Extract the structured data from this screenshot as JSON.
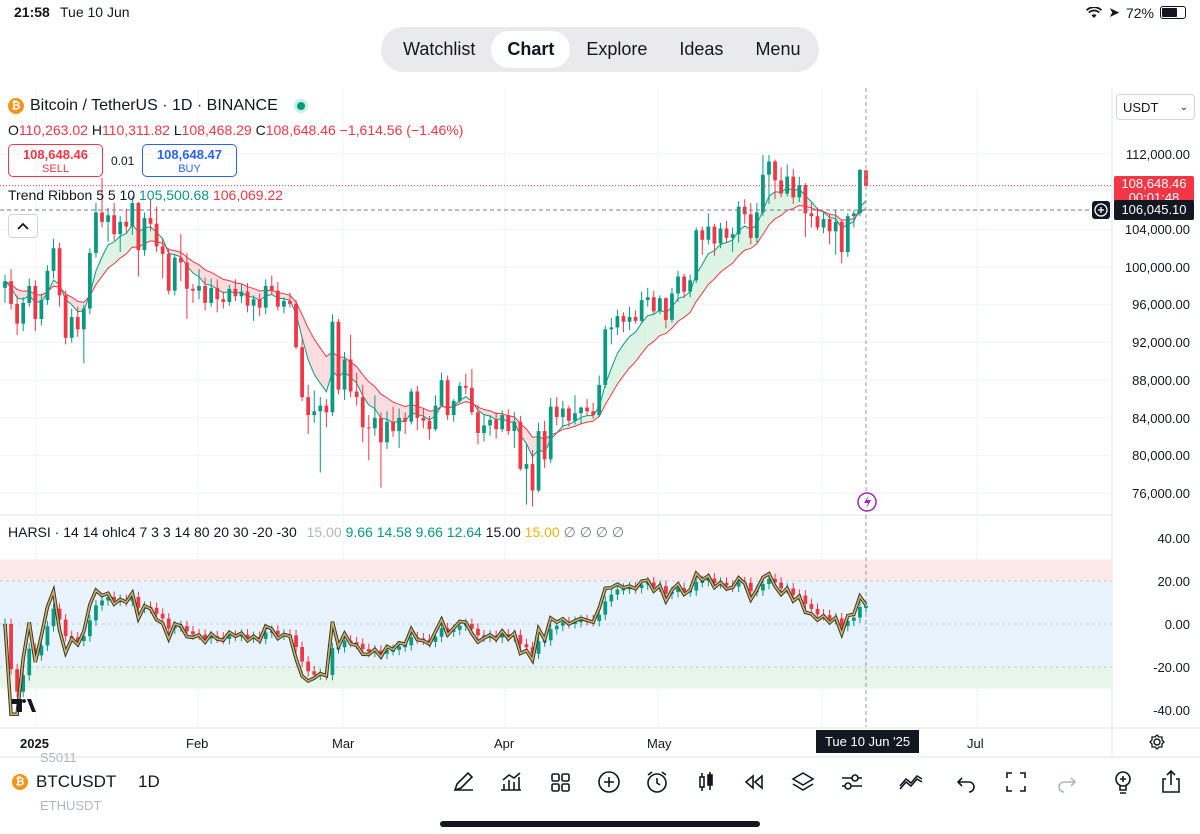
{
  "status_bar": {
    "time": "21:58",
    "date": "Tue 10 Jun",
    "battery": "72%"
  },
  "nav": {
    "tabs": [
      {
        "label": "Watchlist"
      },
      {
        "label": "Chart"
      },
      {
        "label": "Explore"
      },
      {
        "label": "Ideas"
      },
      {
        "label": "Menu"
      }
    ],
    "active": "Chart"
  },
  "symbol": {
    "title": "Bitcoin / TetherUS · 1D · BINANCE",
    "coin_glyph": "₿"
  },
  "ohlc": {
    "o_label": "O",
    "o": "110,263.02",
    "h_label": "H",
    "h": "110,311.82",
    "l_label": "L",
    "l": "108,468.29",
    "c_label": "C",
    "c": "108,648.46",
    "change": "−1,614.56 (−1.46%)"
  },
  "trade": {
    "sell_price": "108,648.46",
    "sell_label": "SELL",
    "spread": "0.01",
    "buy_price": "108,648.47",
    "buy_label": "BUY"
  },
  "ribbon": {
    "name": "Trend Ribbon 5 5 10",
    "v1": "105,500.68",
    "v2": "106,069.22"
  },
  "harsi": {
    "name": "HARSI · 14 14 ohlc4 7 3 3 14 80 20 30 -20 -30",
    "values": [
      "15.00",
      "9.66",
      "14.58",
      "9.66",
      "12.64",
      "15.00",
      "15.00",
      "∅",
      "∅",
      "∅",
      "∅"
    ]
  },
  "currency": {
    "selected": "USDT"
  },
  "price_axis": {
    "labels": [
      "112,000.00",
      "104,000.00",
      "100,000.00",
      "96,000.00",
      "92,000.00",
      "88,000.00",
      "84,000.00",
      "80,000.00",
      "76,000.00"
    ],
    "last_price": "108,648.46",
    "countdown": "00:01:48",
    "crosshair_price": "106,045.10"
  },
  "harsi_axis": {
    "labels": [
      "40.00",
      "20.00",
      "0.00",
      "-20.00",
      "-40.00"
    ]
  },
  "time_axis": {
    "labels": [
      "2025",
      "Feb",
      "Mar",
      "Apr",
      "May",
      "Jul"
    ],
    "crosshair_date": "Tue 10 Jun '25"
  },
  "watchlist": {
    "prev": "S5011",
    "symbol": "BTCUSDT",
    "next": "ETHUSDT",
    "interval": "1D"
  },
  "toolbar": {
    "icons": [
      "drawing-icon",
      "indicators-icon",
      "layouts-icon",
      "add-icon",
      "alert-icon",
      "chart-type-icon",
      "replay-icon",
      "layers-icon",
      "settings-icon",
      "trend-icon",
      "undo-icon",
      "fullscreen-icon",
      "redo-icon",
      "ideas-icon",
      "share-icon"
    ]
  },
  "colors": {
    "up": "#089981",
    "down": "#f23645",
    "accent": "#2962ff",
    "ribbon_up": "#d7f2df",
    "ribbon_down": "#fbd7d9"
  },
  "chart_data": {
    "type": "candlestick",
    "series": [
      {
        "name": "BTCUSDT",
        "ohlc": [
          [
            97800,
            99200,
            96200,
            98500
          ],
          [
            98500,
            99800,
            95500,
            96100
          ],
          [
            96100,
            97000,
            92800,
            94000
          ],
          [
            94000,
            96800,
            93200,
            96200
          ],
          [
            96200,
            98800,
            95800,
            98000
          ],
          [
            98000,
            98600,
            93200,
            94500
          ],
          [
            94500,
            97200,
            93800,
            96500
          ],
          [
            96500,
            100200,
            96000,
            99600
          ],
          [
            99600,
            103000,
            98800,
            102000
          ],
          [
            102000,
            102600,
            95800,
            97000
          ],
          [
            97000,
            97500,
            91800,
            92500
          ],
          [
            92500,
            95600,
            92000,
            94700
          ],
          [
            94700,
            95800,
            92600,
            93400
          ],
          [
            93400,
            96000,
            89800,
            95600
          ],
          [
            95600,
            102000,
            95000,
            101500
          ],
          [
            101500,
            106800,
            101000,
            105800
          ],
          [
            105800,
            109500,
            104200,
            104800
          ],
          [
            104800,
            106300,
            102700,
            105500
          ],
          [
            105500,
            106800,
            102800,
            103500
          ],
          [
            103500,
            105400,
            101600,
            104800
          ],
          [
            104800,
            106200,
            103600,
            104300
          ],
          [
            104300,
            107500,
            103400,
            106800
          ],
          [
            106800,
            106900,
            99000,
            101800
          ],
          [
            101800,
            105800,
            101200,
            105200
          ],
          [
            105200,
            107200,
            103800,
            104600
          ],
          [
            104600,
            106400,
            101600,
            102200
          ],
          [
            102200,
            103000,
            98800,
            101400
          ],
          [
            101400,
            102000,
            97100,
            97500
          ],
          [
            97500,
            101300,
            97000,
            101000
          ],
          [
            101000,
            103500,
            98500,
            100500
          ],
          [
            100500,
            101500,
            94500,
            97700
          ],
          [
            97700,
            98200,
            96200,
            97500
          ],
          [
            97500,
            99800,
            96600,
            98000
          ],
          [
            98000,
            98900,
            95400,
            96200
          ],
          [
            96200,
            98800,
            95800,
            97800
          ],
          [
            97800,
            98700,
            95200,
            96600
          ],
          [
            96600,
            97400,
            95600,
            96300
          ],
          [
            96300,
            98100,
            95900,
            97700
          ],
          [
            97700,
            98700,
            96400,
            96900
          ],
          [
            96900,
            98200,
            96200,
            97400
          ],
          [
            97400,
            98300,
            95200,
            95900
          ],
          [
            95900,
            97000,
            94300,
            96600
          ],
          [
            96600,
            97200,
            94800,
            95700
          ],
          [
            95700,
            98700,
            95000,
            98000
          ],
          [
            98000,
            99100,
            97100,
            97500
          ],
          [
            97500,
            98400,
            95400,
            95800
          ],
          [
            95800,
            96800,
            95100,
            96400
          ],
          [
            96400,
            97300,
            95700,
            96100
          ],
          [
            96100,
            96500,
            91300,
            91500
          ],
          [
            91500,
            92500,
            85800,
            86200
          ],
          [
            86200,
            87500,
            82300,
            84300
          ],
          [
            84300,
            86900,
            83500,
            84700
          ],
          [
            84700,
            86200,
            78200,
            85300
          ],
          [
            85300,
            86000,
            83000,
            84600
          ],
          [
            84600,
            95000,
            84200,
            94200
          ],
          [
            94200,
            94500,
            86500,
            87000
          ],
          [
            87000,
            91000,
            85900,
            90200
          ],
          [
            90200,
            92800,
            86200,
            86800
          ],
          [
            86800,
            88800,
            85300,
            86200
          ],
          [
            86200,
            87500,
            81400,
            83000
          ],
          [
            83000,
            84300,
            79500,
            82900
          ],
          [
            82900,
            86400,
            82100,
            84000
          ],
          [
            84000,
            84600,
            76600,
            81400
          ],
          [
            81400,
            84700,
            80700,
            83600
          ],
          [
            83600,
            85200,
            82000,
            82600
          ],
          [
            82600,
            85000,
            80800,
            84000
          ],
          [
            84000,
            84600,
            82300,
            83600
          ],
          [
            83600,
            87100,
            83300,
            86800
          ],
          [
            86800,
            87400,
            82700,
            84000
          ],
          [
            84000,
            85000,
            82900,
            83700
          ],
          [
            83700,
            84200,
            81700,
            82800
          ],
          [
            82800,
            86400,
            82600,
            85300
          ],
          [
            85300,
            88800,
            85200,
            88000
          ],
          [
            88000,
            88500,
            83800,
            84300
          ],
          [
            84300,
            86000,
            83600,
            85800
          ],
          [
            85800,
            87800,
            85600,
            87400
          ],
          [
            87400,
            88700,
            86500,
            87200
          ],
          [
            87200,
            89200,
            84300,
            84600
          ],
          [
            84600,
            85400,
            81200,
            82400
          ],
          [
            82400,
            84300,
            81500,
            83200
          ],
          [
            83200,
            84300,
            82100,
            83800
          ],
          [
            83800,
            84600,
            81800,
            82800
          ],
          [
            82800,
            84800,
            82500,
            84300
          ],
          [
            84300,
            84900,
            82200,
            82600
          ],
          [
            82600,
            84600,
            80800,
            83600
          ],
          [
            83600,
            84200,
            78400,
            78600
          ],
          [
            78600,
            81300,
            74800,
            79100
          ],
          [
            79100,
            80600,
            74600,
            76300
          ],
          [
            76300,
            83500,
            76100,
            82600
          ],
          [
            82600,
            83700,
            78700,
            79600
          ],
          [
            79600,
            86100,
            79200,
            85200
          ],
          [
            85200,
            86200,
            83200,
            84100
          ],
          [
            84100,
            85800,
            83000,
            85000
          ],
          [
            85000,
            85300,
            83100,
            83700
          ],
          [
            83700,
            86400,
            83300,
            84500
          ],
          [
            84500,
            85200,
            83400,
            85100
          ],
          [
            85100,
            86000,
            84200,
            84700
          ],
          [
            84700,
            85600,
            83900,
            84300
          ],
          [
            84300,
            88500,
            84100,
            87500
          ],
          [
            87500,
            93800,
            87200,
            93400
          ],
          [
            93400,
            94600,
            91800,
            93600
          ],
          [
            93600,
            95500,
            92800,
            94800
          ],
          [
            94800,
            95200,
            93100,
            94200
          ],
          [
            94200,
            95800,
            93300,
            94700
          ],
          [
            94700,
            95400,
            94000,
            94300
          ],
          [
            94300,
            97400,
            94100,
            96500
          ],
          [
            96500,
            97800,
            95800,
            96800
          ],
          [
            96800,
            97500,
            95000,
            95300
          ],
          [
            95300,
            97000,
            95000,
            96700
          ],
          [
            96700,
            96800,
            93500,
            94400
          ],
          [
            94400,
            97800,
            94100,
            97200
          ],
          [
            97200,
            99600,
            96300,
            99000
          ],
          [
            99000,
            99300,
            96700,
            97400
          ],
          [
            97400,
            99200,
            96800,
            98600
          ],
          [
            98600,
            104200,
            98300,
            103900
          ],
          [
            103900,
            104300,
            101300,
            102900
          ],
          [
            102900,
            105700,
            102400,
            104300
          ],
          [
            104300,
            104600,
            101200,
            102500
          ],
          [
            102500,
            104700,
            102000,
            104100
          ],
          [
            104100,
            104900,
            102600,
            103100
          ],
          [
            103100,
            104200,
            101600,
            103500
          ],
          [
            103500,
            107000,
            102600,
            106400
          ],
          [
            106400,
            107200,
            104600,
            105600
          ],
          [
            105600,
            106800,
            102400,
            103100
          ],
          [
            103100,
            106800,
            102600,
            105800
          ],
          [
            105800,
            111900,
            105400,
            109800
          ],
          [
            109800,
            111900,
            106700,
            111200
          ],
          [
            111200,
            111400,
            107200,
            109200
          ],
          [
            109200,
            110600,
            107400,
            107800
          ],
          [
            107800,
            110900,
            107500,
            109600
          ],
          [
            109600,
            110400,
            106700,
            107400
          ],
          [
            107400,
            109600,
            106900,
            108700
          ],
          [
            108700,
            108900,
            103200,
            105700
          ],
          [
            105700,
            106800,
            104200,
            105400
          ],
          [
            105400,
            106300,
            103900,
            104200
          ],
          [
            104200,
            105800,
            103600,
            105100
          ],
          [
            105100,
            105700,
            102400,
            103800
          ],
          [
            103800,
            106100,
            101300,
            104800
          ],
          [
            104800,
            105000,
            100400,
            101600
          ],
          [
            101600,
            105700,
            101100,
            105400
          ],
          [
            105400,
            106000,
            104200,
            105700
          ],
          [
            105700,
            110400,
            105400,
            110300
          ],
          [
            110263.02,
            110311.82,
            108468.29,
            108648.46
          ]
        ]
      }
    ],
    "ylim": [
      74000,
      114000
    ],
    "x_ticks": [
      "2025",
      "Feb",
      "Mar",
      "Apr",
      "May",
      "Jul"
    ],
    "y_ticks": [
      76000,
      80000,
      84000,
      88000,
      92000,
      96000,
      100000,
      104000,
      112000
    ],
    "ribbon": {
      "fast": 105500.68,
      "slow": 106069.22
    },
    "harsi": {
      "ylim": [
        -45,
        45
      ],
      "y_ticks": [
        40,
        20,
        0,
        -20,
        -40
      ],
      "bands": [
        [
          20,
          30
        ],
        [
          -30,
          -20
        ]
      ]
    }
  }
}
